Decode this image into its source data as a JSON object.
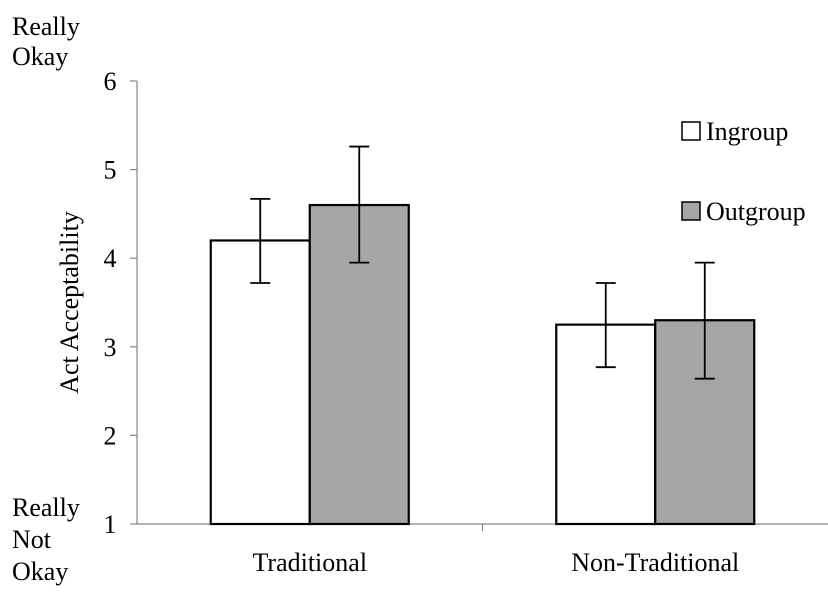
{
  "chart_data": {
    "type": "bar",
    "ylabel": "Act Acceptability",
    "xlabel": "",
    "ylim": [
      1,
      6
    ],
    "yticks": [
      1,
      2,
      3,
      4,
      5,
      6
    ],
    "grid": false,
    "legend_position": "top-right",
    "categories": [
      "Traditional",
      "Non-Traditional"
    ],
    "series": [
      {
        "name": "Ingroup",
        "color": "#ffffff",
        "values": [
          4.2,
          3.25
        ],
        "error_low": [
          3.72,
          2.77
        ],
        "error_high": [
          4.67,
          3.72
        ]
      },
      {
        "name": "Outgroup",
        "color": "#a6a6a6",
        "values": [
          4.6,
          3.3
        ],
        "error_low": [
          3.95,
          2.64
        ],
        "error_high": [
          5.26,
          3.95
        ]
      }
    ],
    "y_anchor_labels": {
      "top": [
        "Really",
        "Okay"
      ],
      "bottom": [
        "Really",
        "Not",
        "Okay"
      ]
    }
  }
}
